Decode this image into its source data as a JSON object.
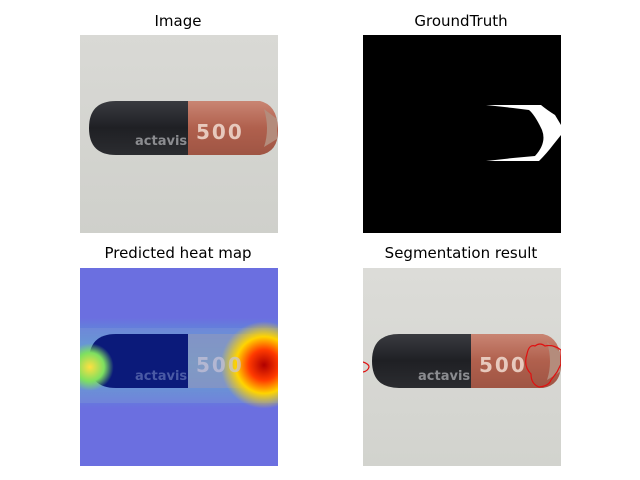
{
  "panels": {
    "image": {
      "title": "Image"
    },
    "ground_truth": {
      "title": "GroundTruth"
    },
    "heat_map": {
      "title": "Predicted heat map"
    },
    "segmentation": {
      "title": "Segmentation result"
    }
  },
  "capsule": {
    "brand_text": "actavis",
    "dose_text": "500",
    "dark_cap_color": "#26272b",
    "body_color": "#b86a58"
  },
  "overlay": {
    "contour_color": "#e01010",
    "mask_color": "#ffffff"
  }
}
